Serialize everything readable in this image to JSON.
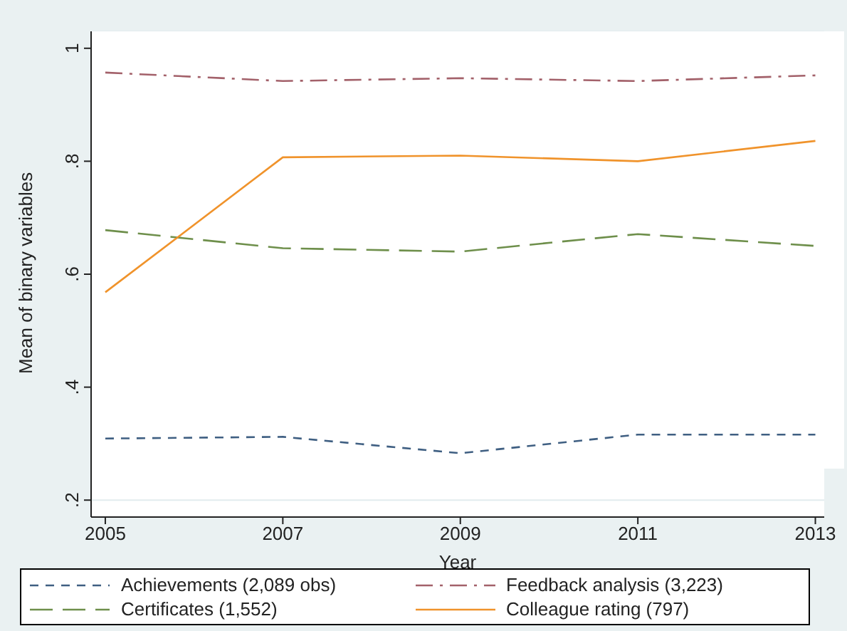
{
  "chart_data": {
    "type": "line",
    "xlabel": "Year",
    "ylabel": "Mean of binary variables",
    "x": [
      2005,
      2007,
      2009,
      2011,
      2013
    ],
    "series": [
      {
        "name": "Achievements (2,089 obs)",
        "color": "#3f5f82",
        "line_style": "dashed",
        "values": [
          0.309,
          0.312,
          0.283,
          0.316,
          0.316
        ]
      },
      {
        "name": "Feedback analysis (3,223)",
        "color": "#a3616a",
        "line_style": "dashed",
        "values": [
          0.957,
          0.942,
          0.947,
          0.942,
          0.952
        ]
      },
      {
        "name": "Certificates (1,552)",
        "color": "#6e8f4b",
        "line_style": "dashed",
        "values": [
          0.678,
          0.646,
          0.64,
          0.671,
          0.65
        ]
      },
      {
        "name": "Colleague rating (797)",
        "color": "#f0932b",
        "line_style": "solid",
        "values": [
          0.568,
          0.807,
          0.81,
          0.8,
          0.836
        ]
      }
    ],
    "xlim": [
      2004.84,
      2013.1
    ],
    "xticks": [
      2005,
      2007,
      2009,
      2011,
      2013
    ],
    "ylim": [
      0.17,
      1.03
    ],
    "yticks": [
      {
        "value": 0.2,
        "label": ".2"
      },
      {
        "value": 0.4,
        "label": ".4"
      },
      {
        "value": 0.6,
        "label": ".6"
      },
      {
        "value": 0.8,
        "label": ".8"
      },
      {
        "value": 1,
        "label": "1"
      }
    ],
    "grid": "y",
    "legend": "bottom",
    "marker": "none"
  }
}
